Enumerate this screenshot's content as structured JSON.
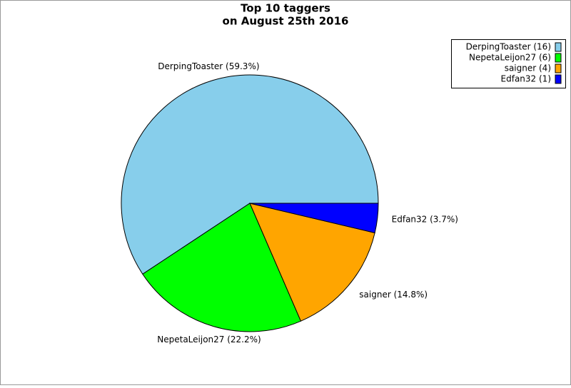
{
  "chart_data": {
    "type": "pie",
    "title": [
      "Top 10 taggers",
      "on August 25th 2016"
    ],
    "values": [
      59.3,
      22.2,
      14.8,
      3.7
    ],
    "value_labels": [
      "DerpingToaster (59.3%)",
      "NepetaLeijon27 (22.2%)",
      "saigner (14.8%)",
      "Edfan32 (3.7%)"
    ],
    "legend_labels": [
      "DerpingToaster (16)",
      "NepetaLeijon27 (6)",
      "saigner (4)",
      "Edfan32 (1)"
    ],
    "colors": [
      "#87ceeb",
      "#00ff00",
      "#ffa500",
      "#0000ff"
    ],
    "legend": "top-right"
  }
}
